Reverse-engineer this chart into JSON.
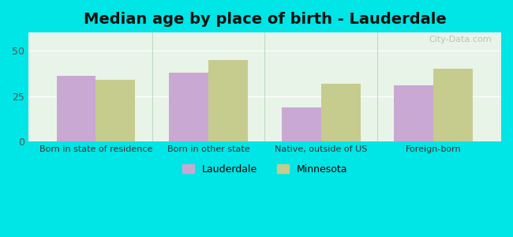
{
  "title": "Median age by place of birth - Lauderdale",
  "categories": [
    "Born in state of residence",
    "Born in other state",
    "Native, outside of US",
    "Foreign-born"
  ],
  "lauderdale_values": [
    36,
    38,
    19,
    31
  ],
  "minnesota_values": [
    34,
    45,
    32,
    40
  ],
  "lauderdale_color": "#c9a8d4",
  "minnesota_color": "#c5cc8e",
  "background_outer": "#00e5e5",
  "background_inner_top": "#e8f4e8",
  "background_inner_bottom": "#f5fff5",
  "ylim": [
    0,
    60
  ],
  "yticks": [
    0,
    25,
    50
  ],
  "bar_width": 0.35,
  "legend_lauderdale": "Lauderdale",
  "legend_minnesota": "Minnesota",
  "title_fontsize": 14
}
